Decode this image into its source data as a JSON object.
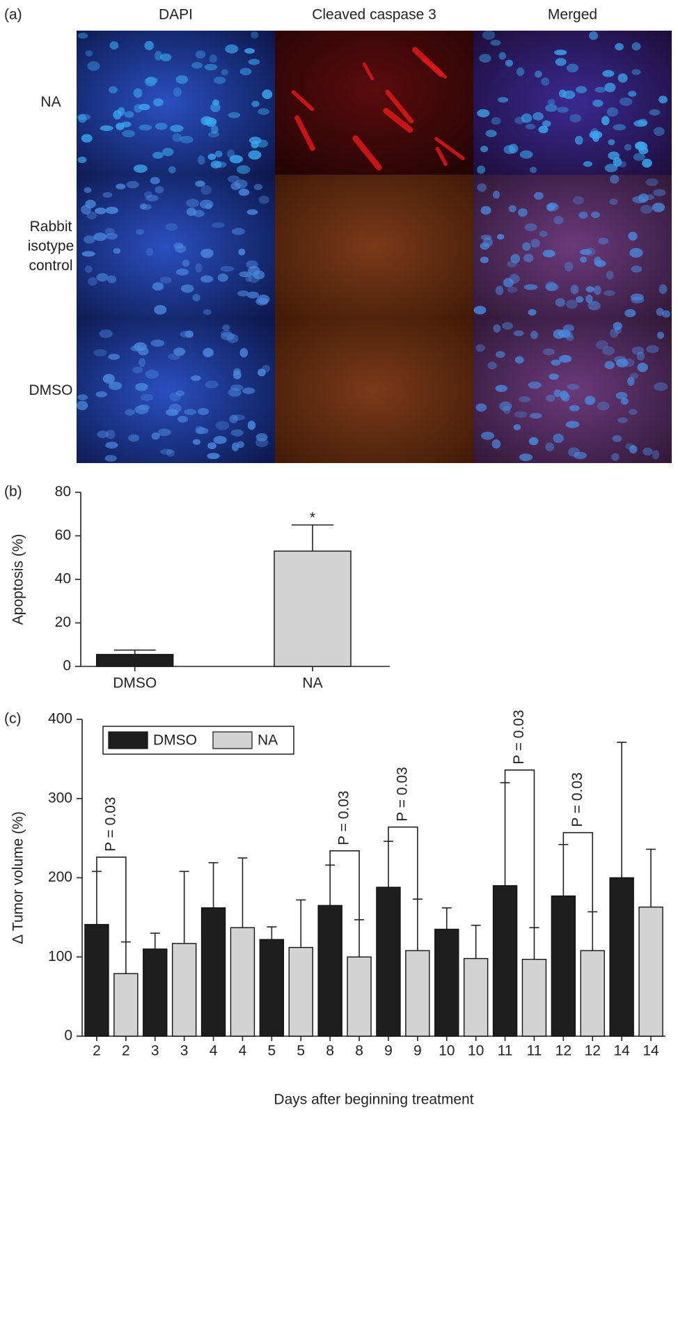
{
  "panel_a": {
    "label": "(a)",
    "columns": [
      "DAPI",
      "Cleaved caspase 3",
      "Merged"
    ],
    "rows": [
      [
        "NA"
      ],
      [
        "Rabbit",
        "isotype",
        "control"
      ],
      [
        "DMSO"
      ]
    ]
  },
  "chart_data": [
    {
      "type": "bar",
      "label": "(b)",
      "ylabel": "Apoptosis (%)",
      "categories": [
        "DMSO",
        "NA"
      ],
      "values": [
        5.5,
        53
      ],
      "errors": [
        2,
        12
      ],
      "colors": [
        "#1e1e1e",
        "#d3d3d3"
      ],
      "ylim": [
        0,
        80
      ],
      "yticks": [
        0,
        20,
        40,
        60,
        80
      ],
      "annotations": [
        {
          "text": "*",
          "category": "NA",
          "y": 68
        }
      ]
    },
    {
      "type": "bar",
      "label": "(c)",
      "ylabel": "Δ Tumor volume (%)",
      "xlabel": "Days after beginning treatment",
      "categories": [
        2,
        3,
        4,
        5,
        8,
        9,
        10,
        11,
        12,
        14
      ],
      "series": [
        {
          "name": "DMSO",
          "color": "#1e1e1e",
          "values": [
            141,
            110,
            162,
            122,
            165,
            188,
            135,
            190,
            177,
            200
          ],
          "errors": [
            67,
            20,
            57,
            16,
            51,
            58,
            27,
            130,
            65,
            171
          ]
        },
        {
          "name": "NA",
          "color": "#d3d3d3",
          "values": [
            79,
            117,
            137,
            112,
            100,
            108,
            98,
            97,
            108,
            163
          ],
          "errors": [
            40,
            91,
            88,
            60,
            47,
            65,
            42,
            40,
            49,
            73
          ]
        }
      ],
      "ylim": [
        0,
        400
      ],
      "yticks": [
        0,
        100,
        200,
        300,
        400
      ],
      "legend": "upper left",
      "brackets": [
        {
          "text": "P = 0.03",
          "category": 2,
          "y": 226
        },
        {
          "text": "P = 0.03",
          "category": 8,
          "y": 234
        },
        {
          "text": "P = 0.03",
          "category": 9,
          "y": 264
        },
        {
          "text": "P = 0.03",
          "category": 11,
          "y": 336
        },
        {
          "text": "P = 0.03",
          "category": 12,
          "y": 257
        }
      ]
    }
  ]
}
